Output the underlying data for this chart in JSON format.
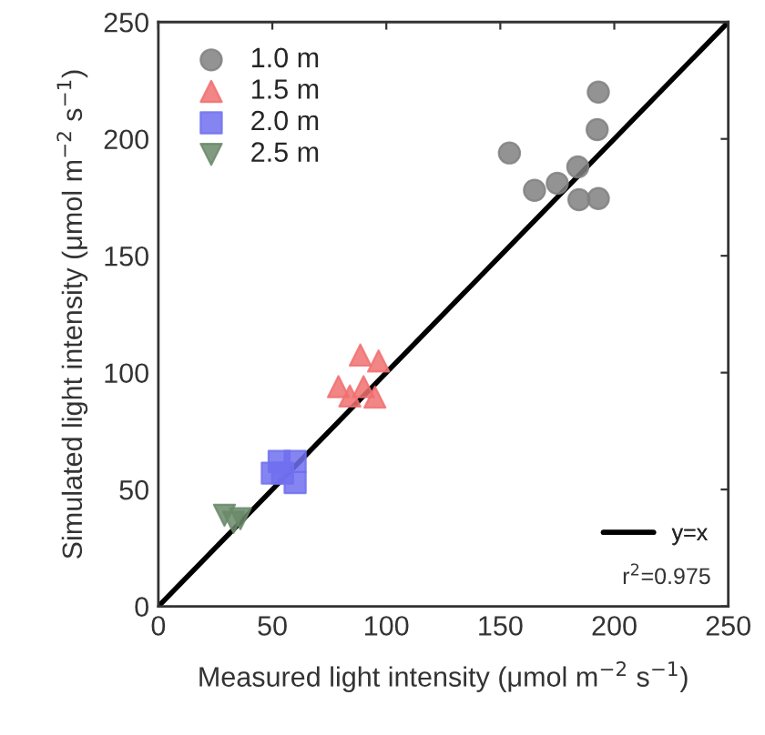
{
  "chart_data": {
    "type": "scatter",
    "xlabel": "Measured light intensity (μmol m$^{−2}$ s$^{−1}$)",
    "ylabel": "Simulated light intensity (μmol m$^{−2}$ s$^{−1}$)",
    "xlim": [
      0,
      250
    ],
    "ylim": [
      0,
      250
    ],
    "xticks": [
      0,
      50,
      100,
      150,
      200,
      250
    ],
    "yticks": [
      0,
      50,
      100,
      150,
      200,
      250
    ],
    "legend": "top left",
    "grid": false,
    "annotations": [
      "r$^{2}$=0.975"
    ],
    "series": [
      {
        "name": "1.0 m",
        "color": "#808080",
        "marker": "circle",
        "x": [
          193,
          192.5,
          154,
          184,
          175,
          165,
          184.5,
          193
        ],
        "values": [
          220,
          204,
          194,
          188,
          181,
          178,
          174,
          174.5
        ]
      },
      {
        "name": "1.5 m",
        "color": "#f07070",
        "marker": "triangle",
        "x": [
          88.6,
          96.6,
          79,
          90,
          95,
          84
        ],
        "values": [
          107.5,
          105,
          94,
          94,
          89.5,
          90
        ]
      },
      {
        "name": "2.0 m",
        "color": "#7070f0",
        "marker": "square",
        "x": [
          53,
          60,
          50,
          60,
          54.5
        ],
        "values": [
          62,
          62,
          57,
          53,
          57
        ]
      },
      {
        "name": "2.5 m",
        "color": "#6a8a6a",
        "marker": "triangle_down",
        "x": [
          29,
          36,
          33
        ],
        "values": [
          39,
          37.5,
          36
        ]
      },
      {
        "name": "y=x",
        "type": "line",
        "color": "#000000",
        "x": [
          0,
          250
        ],
        "values": [
          0,
          250
        ]
      }
    ]
  }
}
